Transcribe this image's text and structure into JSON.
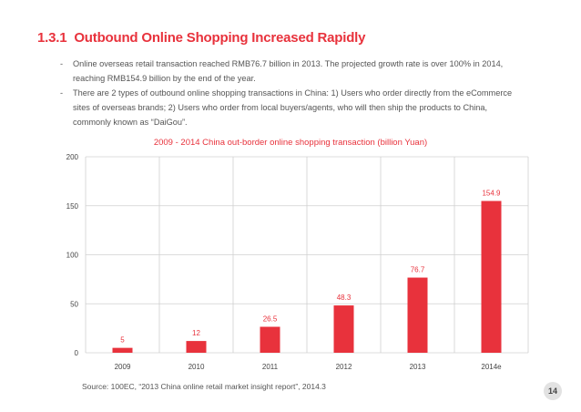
{
  "section": {
    "number": "1.3.1",
    "title": "Outbound Online Shopping Increased Rapidly"
  },
  "bullets": [
    "Online overseas retail transaction reached RMB76.7 billion in 2013. The projected growth rate is over 100% in 2014, reaching RMB154.9 billion by the end of the year.",
    "There are 2 types of outbound online shopping transactions in China: 1) Users who order directly from the eCommerce sites of overseas brands; 2) Users who order from local buyers/agents, who will then ship the products to China, commonly known as “DaiGou”."
  ],
  "chart_data": {
    "type": "bar",
    "title": "2009 - 2014 China out-border online shopping transaction (billion Yuan)",
    "categories": [
      "2009",
      "2010",
      "2011",
      "2012",
      "2013",
      "2014e"
    ],
    "values": [
      5,
      12,
      26.5,
      48.3,
      76.7,
      154.9
    ],
    "data_labels": [
      "5",
      "12",
      "26.5",
      "48.3",
      "76.7",
      "154.9"
    ],
    "ylim": [
      0,
      200
    ],
    "yticks": [
      0,
      50,
      100,
      150,
      200
    ],
    "xlabel": "",
    "ylabel": "",
    "grid": true,
    "bar_color": "#e8323c"
  },
  "source": "Source: 100EC, “2013 China online retail market insight report”, 2014.3",
  "page_number": "14",
  "colors": {
    "accent": "#e8323c",
    "grid": "#d0d0d0"
  }
}
